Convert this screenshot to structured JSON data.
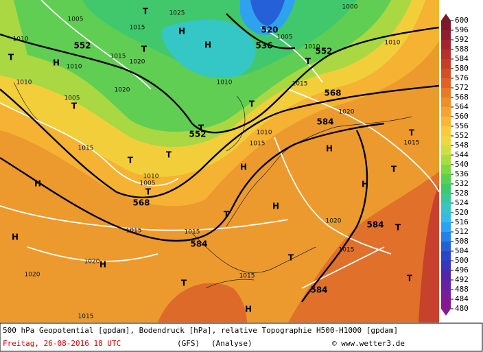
{
  "colorbar": {
    "ticks": [
      600,
      596,
      592,
      588,
      584,
      580,
      576,
      572,
      568,
      564,
      560,
      556,
      552,
      548,
      544,
      540,
      536,
      532,
      528,
      524,
      520,
      516,
      512,
      508,
      504,
      500,
      496,
      492,
      488,
      484,
      480
    ],
    "colors": [
      "#7a1a2a",
      "#8e1f2f",
      "#a3262f",
      "#b8302b",
      "#c83c28",
      "#d44e28",
      "#de6228",
      "#e57a2a",
      "#ec902c",
      "#f2a62f",
      "#f6b934",
      "#f8cb38",
      "#f0d83c",
      "#cfe03e",
      "#a8dc40",
      "#7fd647",
      "#5ccf52",
      "#42c86a",
      "#3cc79a",
      "#35c6c6",
      "#33bde6",
      "#2ea2ee",
      "#2a7fe6",
      "#2560d8",
      "#2a46c6",
      "#3a36b4",
      "#5028a6",
      "#64229e",
      "#761e98",
      "#84198e"
    ]
  },
  "map_labels": [
    "1005",
    "1010",
    "552",
    "1015",
    "1025",
    "1010",
    "1015",
    "1020",
    "1010",
    "1020",
    "1005",
    "520",
    "536",
    "552",
    "1000",
    "1005",
    "1010",
    "1010",
    "1015",
    "568",
    "1010",
    "1020",
    "584",
    "552",
    "1010",
    "1015",
    "1015",
    "1010",
    "1005",
    "568",
    "1015",
    "1015",
    "584",
    "1020",
    "584",
    "1015",
    "1020",
    "1020",
    "1015",
    "584",
    "1015",
    "1015",
    "H",
    "H",
    "H",
    "H",
    "H",
    "H",
    "H",
    "H",
    "H",
    "H",
    "H",
    "T",
    "T",
    "T",
    "T",
    "T",
    "T",
    "T",
    "T",
    "T",
    "T",
    "T",
    "T",
    "T",
    "T",
    "T",
    "T",
    "T"
  ],
  "footer": {
    "description": "500 hPa Geopotential [gpdam], Bodendruck [hPa], relative Topographie H500-H1000 [gpdam]",
    "date": "Freitag, 26-08-2016  18 UTC",
    "model": "(GFS)",
    "run": "(Analyse)",
    "credit": "© www.wetter3.de"
  }
}
